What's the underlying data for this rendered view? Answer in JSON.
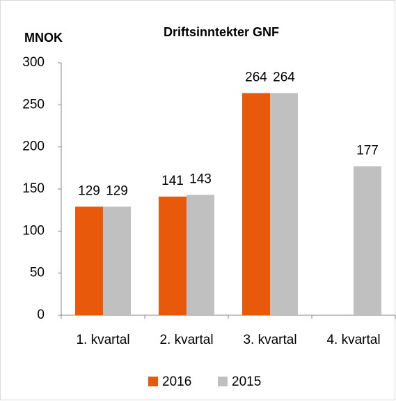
{
  "chart_data": {
    "type": "bar",
    "title": "Driftsinntekter GNF",
    "y_label": "MNOK",
    "categories": [
      "1. kvartal",
      "2. kvartal",
      "3. kvartal",
      "4. kvartal"
    ],
    "series": [
      {
        "name": "2016",
        "color": "#e8590c",
        "values": [
          129,
          141,
          264,
          null
        ]
      },
      {
        "name": "2015",
        "color": "#c0c0c0",
        "values": [
          129,
          143,
          264,
          177
        ]
      }
    ],
    "ylim": [
      0,
      300
    ],
    "yticks": [
      0,
      50,
      100,
      150,
      200,
      250,
      300
    ],
    "grid": false,
    "legend": "bottom"
  }
}
